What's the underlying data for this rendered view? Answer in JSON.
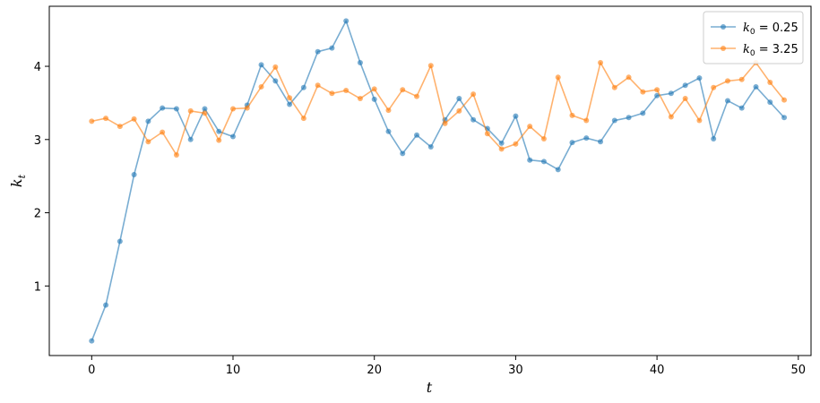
{
  "chart_data": {
    "type": "line",
    "title": "",
    "xlabel": "t",
    "ylabel": "k",
    "ylabel_subscript": "t",
    "xlim": [
      -3,
      50.9
    ],
    "ylim": [
      0.05,
      4.82
    ],
    "xticks": [
      0,
      10,
      20,
      30,
      40,
      50
    ],
    "yticks": [
      1,
      2,
      3,
      4
    ],
    "grid": false,
    "legend_position": "top-right",
    "marker": "circle",
    "series": [
      {
        "name": "k0 = 0.25",
        "legend_main": "k",
        "legend_sub": "0",
        "legend_value": " = 0.25",
        "color": "#1f77b4",
        "x": [
          0,
          1,
          2,
          3,
          4,
          5,
          6,
          7,
          8,
          9,
          10,
          11,
          12,
          13,
          14,
          15,
          16,
          17,
          18,
          19,
          20,
          21,
          22,
          23,
          24,
          25,
          26,
          27,
          28,
          29,
          30,
          31,
          32,
          33,
          34,
          35,
          36,
          37,
          38,
          39,
          40,
          41,
          42,
          43,
          44,
          45,
          46,
          47,
          48,
          49
        ],
        "y": [
          0.25,
          0.74,
          1.61,
          2.52,
          3.25,
          3.43,
          3.42,
          3.0,
          3.42,
          3.11,
          3.04,
          3.47,
          4.02,
          3.8,
          3.48,
          3.71,
          4.2,
          4.25,
          4.62,
          4.05,
          3.55,
          3.11,
          2.81,
          3.06,
          2.9,
          3.27,
          3.56,
          3.27,
          3.15,
          2.95,
          3.32,
          2.72,
          2.7,
          2.59,
          2.96,
          3.02,
          2.97,
          3.26,
          3.3,
          3.36,
          3.6,
          3.63,
          3.74,
          3.84,
          3.01,
          3.53,
          3.43,
          3.72,
          3.51,
          3.3
        ]
      },
      {
        "name": "k0 = 3.25",
        "legend_main": "k",
        "legend_sub": "0",
        "legend_value": " = 3.25",
        "color": "#ff7f0e",
        "x": [
          0,
          1,
          2,
          3,
          4,
          5,
          6,
          7,
          8,
          9,
          10,
          11,
          12,
          13,
          14,
          15,
          16,
          17,
          18,
          19,
          20,
          21,
          22,
          23,
          24,
          25,
          26,
          27,
          28,
          29,
          30,
          31,
          32,
          33,
          34,
          35,
          36,
          37,
          38,
          39,
          40,
          41,
          42,
          43,
          44,
          45,
          46,
          47,
          48,
          49
        ],
        "y": [
          3.25,
          3.29,
          3.18,
          3.28,
          2.97,
          3.1,
          2.79,
          3.39,
          3.36,
          2.99,
          3.42,
          3.43,
          3.72,
          3.99,
          3.57,
          3.29,
          3.74,
          3.63,
          3.67,
          3.56,
          3.69,
          3.4,
          3.68,
          3.59,
          4.01,
          3.22,
          3.39,
          3.62,
          3.08,
          2.87,
          2.94,
          3.18,
          3.01,
          3.85,
          3.33,
          3.26,
          4.05,
          3.71,
          3.85,
          3.65,
          3.68,
          3.31,
          3.56,
          3.26,
          3.71,
          3.8,
          3.82,
          4.05,
          3.78,
          3.54
        ]
      }
    ]
  }
}
